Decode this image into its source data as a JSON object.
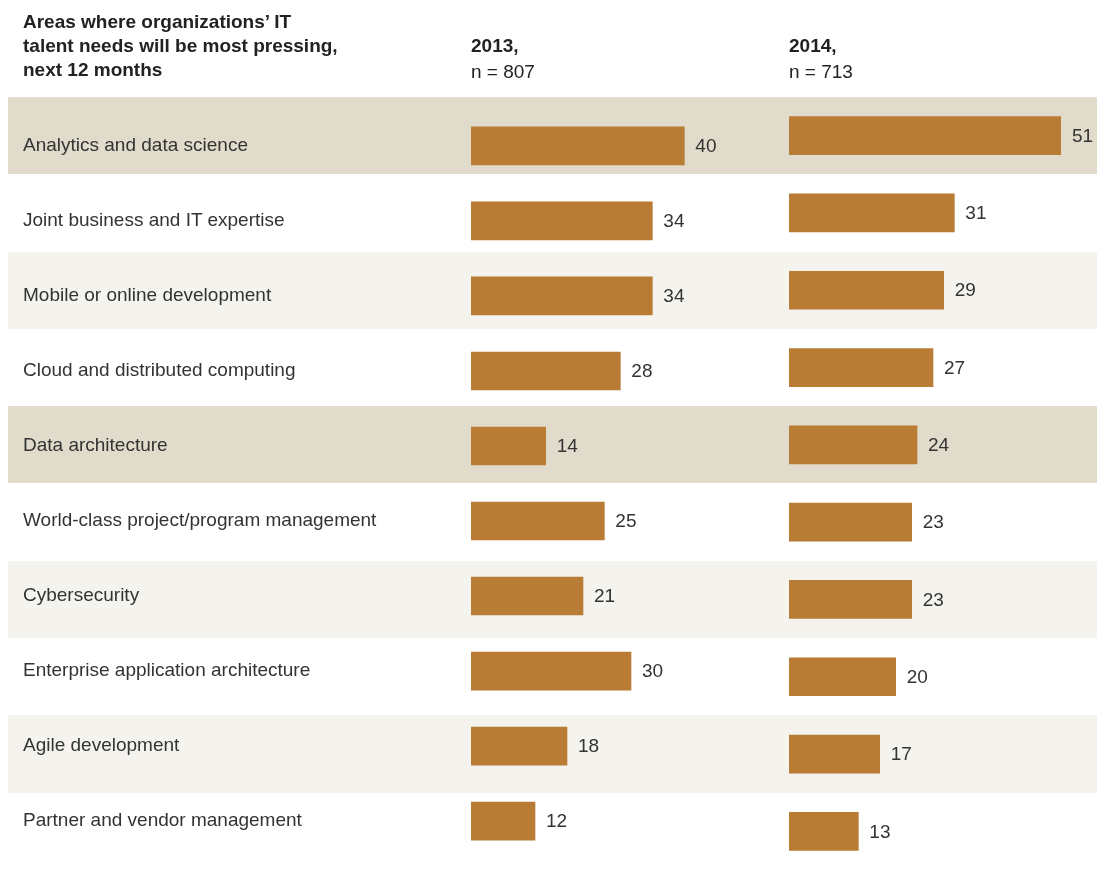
{
  "chart_data": [
    {
      "type": "bar",
      "orientation": "horizontal",
      "title": "2013,",
      "subtitle": "n = 807",
      "ylabel": "Areas where organizations’ IT talent needs will be most pressing, next 12 months",
      "categories": [
        "Analytics and data science",
        "Joint business and IT expertise",
        "Mobile or online development",
        "Cloud and distributed computing",
        "Data architecture",
        "World-class project/program management",
        "Cybersecurity",
        "Enterprise application architecture",
        "Agile development",
        "Partner and vendor management"
      ],
      "values": [
        40,
        34,
        34,
        28,
        14,
        25,
        21,
        30,
        18,
        12
      ],
      "color": "#b87c35",
      "data_labels": true,
      "tick_labels": "y"
    },
    {
      "type": "bar",
      "orientation": "horizontal",
      "title": "2014,",
      "subtitle": "n = 713",
      "categories": [
        null,
        null,
        null,
        null,
        null,
        null,
        null,
        null,
        null,
        null
      ],
      "values": [
        51,
        31,
        29,
        27,
        24,
        23,
        23,
        20,
        17,
        13
      ],
      "color": "#b87c35",
      "data_labels": true,
      "tick_labels": false
    }
  ]
}
